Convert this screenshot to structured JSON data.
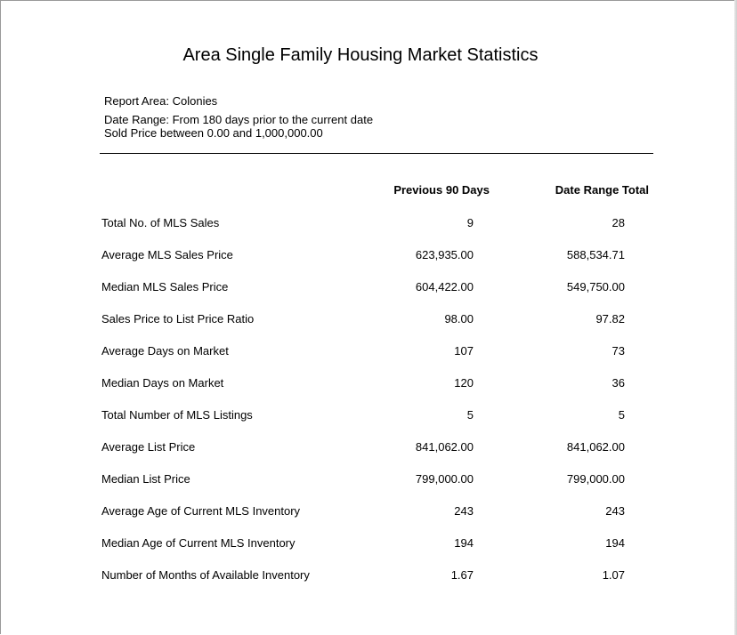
{
  "report": {
    "title": "Area Single Family Housing Market Statistics",
    "area_line": "Report Area: Colonies",
    "range_line": "Date Range: From 180 days prior to the current date",
    "price_line": "Sold Price between 0.00 and 1,000,000.00"
  },
  "table": {
    "columns": [
      "Previous 90 Days",
      "Date Range Total"
    ],
    "rows": [
      {
        "label": "Total No. of MLS Sales",
        "previous_90_days": "9",
        "date_range_total": "28"
      },
      {
        "label": "Average MLS Sales Price",
        "previous_90_days": "623,935.00",
        "date_range_total": "588,534.71"
      },
      {
        "label": "Median MLS Sales Price",
        "previous_90_days": "604,422.00",
        "date_range_total": "549,750.00"
      },
      {
        "label": "Sales Price to List Price Ratio",
        "previous_90_days": "98.00",
        "date_range_total": "97.82"
      },
      {
        "label": "Average Days on Market",
        "previous_90_days": "107",
        "date_range_total": "73"
      },
      {
        "label": "Median Days on Market",
        "previous_90_days": "120",
        "date_range_total": "36"
      },
      {
        "label": "Total Number of MLS Listings",
        "previous_90_days": "5",
        "date_range_total": "5"
      },
      {
        "label": "Average List Price",
        "previous_90_days": "841,062.00",
        "date_range_total": "841,062.00"
      },
      {
        "label": "Median List Price",
        "previous_90_days": "799,000.00",
        "date_range_total": "799,000.00"
      },
      {
        "label": "Average Age of Current MLS Inventory",
        "previous_90_days": "243",
        "date_range_total": "243"
      },
      {
        "label": "Median Age of Current MLS Inventory",
        "previous_90_days": "194",
        "date_range_total": "194"
      },
      {
        "label": "Number of Months of Available Inventory",
        "previous_90_days": "1.67",
        "date_range_total": "1.07"
      }
    ]
  }
}
